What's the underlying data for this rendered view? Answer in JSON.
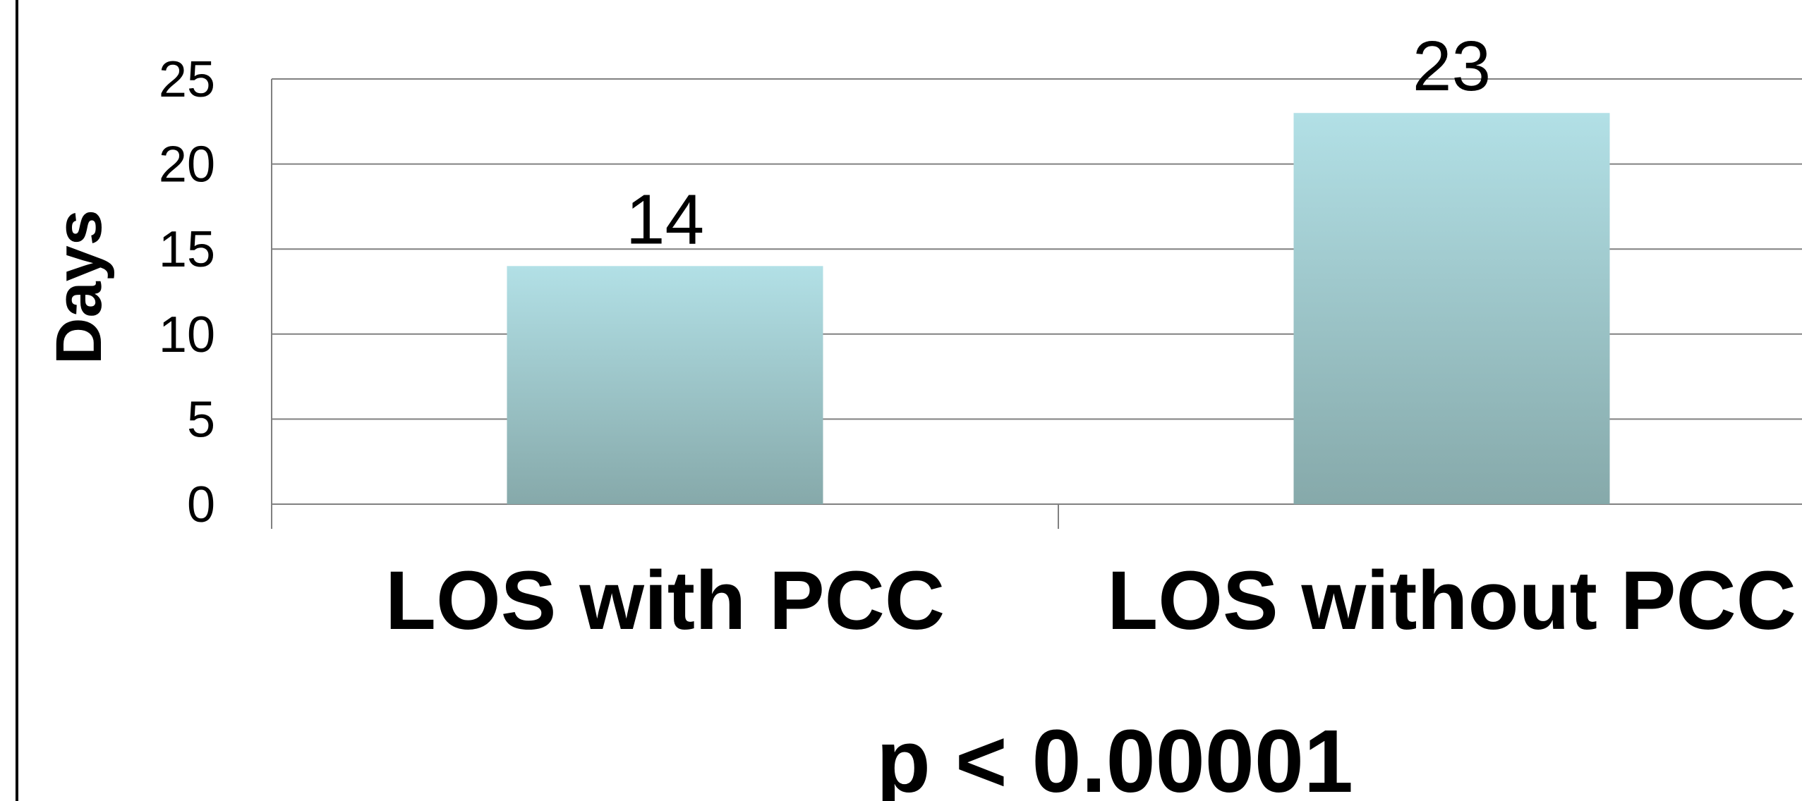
{
  "chart_data": {
    "type": "bar",
    "categories": [
      "LOS with PCC",
      "LOS without PCC"
    ],
    "values": [
      14,
      23
    ],
    "data_labels": [
      "14",
      "23"
    ],
    "title": "",
    "xlabel": "",
    "ylabel": "Days",
    "ylim": [
      0,
      25
    ],
    "yticks": [
      0,
      5,
      10,
      15,
      20,
      25
    ],
    "grid": true,
    "legend": "none",
    "annotation": "p < 0.00001",
    "colors": {
      "bar_top": "#b2e0e6",
      "bar_bottom": "#86a9aa",
      "grid": "#808080"
    }
  }
}
